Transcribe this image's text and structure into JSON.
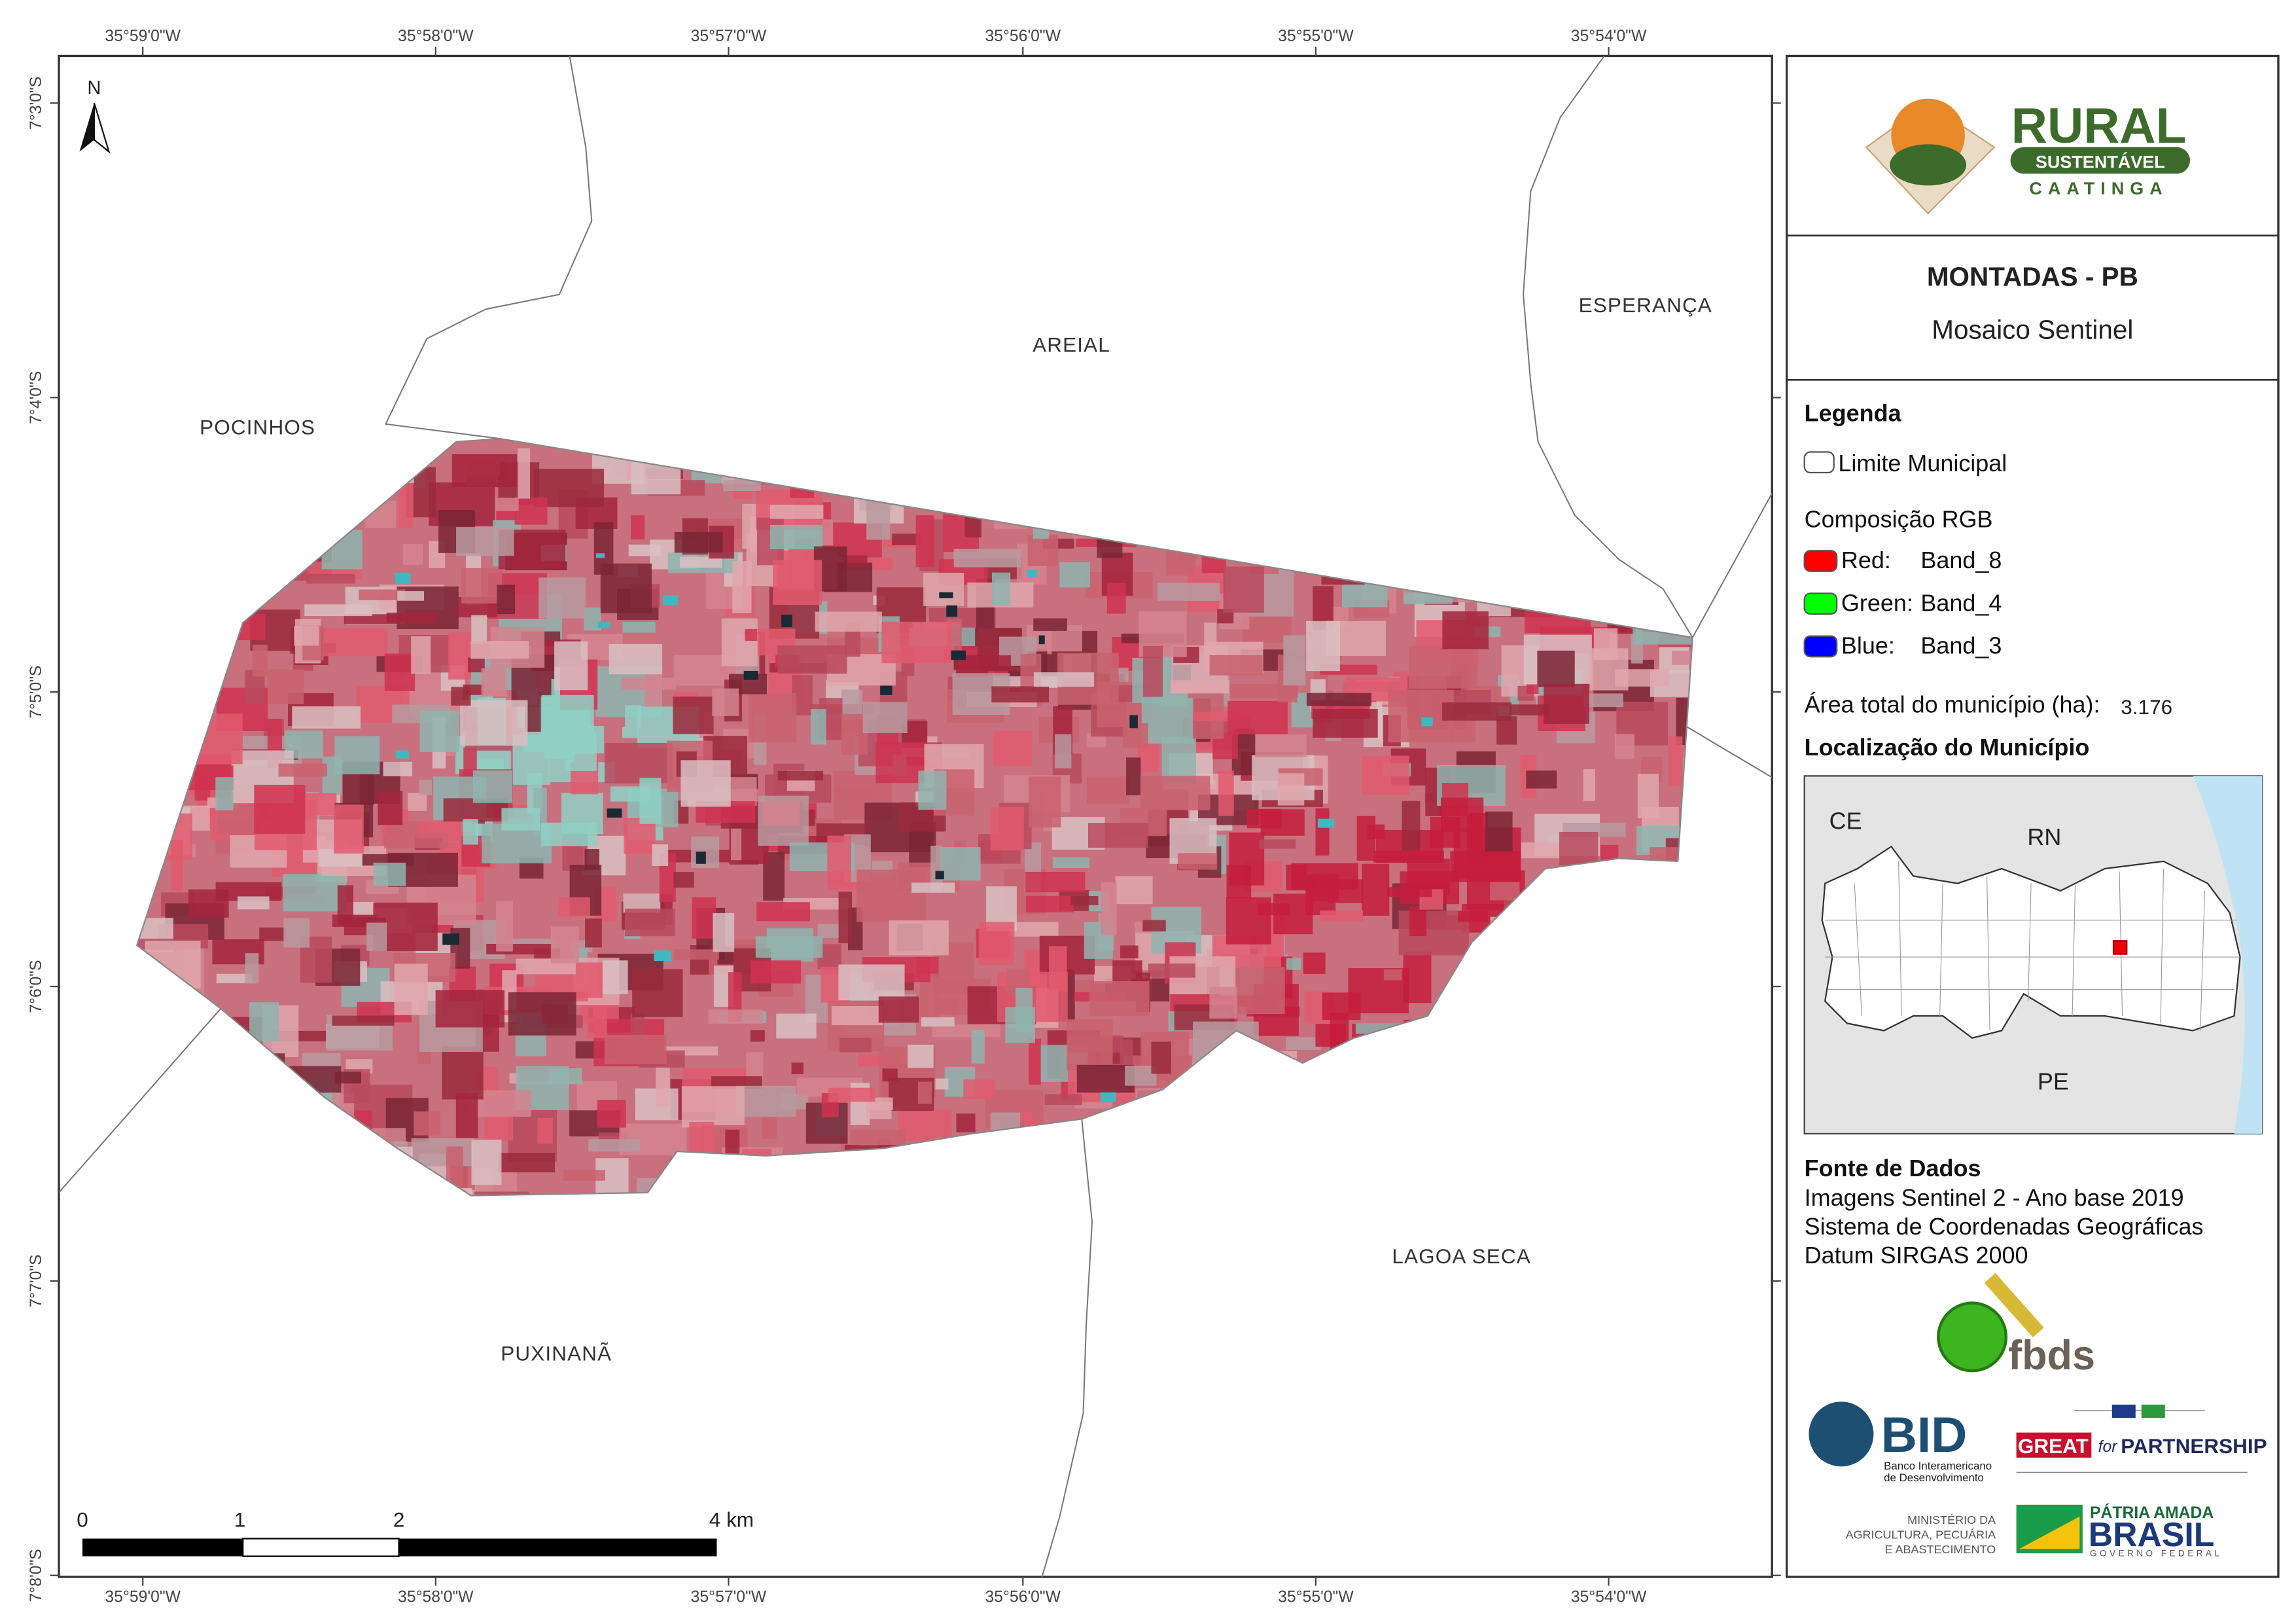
{
  "header": {
    "logo": {
      "line1": "RURAL",
      "line2": "SUSTENTÁVEL",
      "line3": "CAATINGA"
    },
    "title": "MONTADAS - PB",
    "subtitle": "Mosaico Sentinel"
  },
  "map": {
    "north": "N",
    "longitudes": [
      "35°59'0\"W",
      "35°58'0\"W",
      "35°57'0\"W",
      "35°56'0\"W",
      "35°55'0\"W",
      "35°54'0\"W"
    ],
    "latitudes": [
      "7°3'0\"S",
      "7°4'0\"S",
      "7°5'0\"S",
      "7°6'0\"S",
      "7°7'0\"S",
      "7°8'0\"S"
    ],
    "places": [
      "POCINHOS",
      "AREIAL",
      "ESPERANÇA",
      "LAGOA SECA",
      "PUXINANÃ"
    ],
    "scale": [
      "0",
      "1",
      "2",
      "4 km"
    ]
  },
  "legend": {
    "title": "Legenda",
    "boundary": "Limite Municipal",
    "rgb_title": "Composição RGB",
    "bands": [
      {
        "channel": "Red:",
        "band": "Band_8"
      },
      {
        "channel": "Green:",
        "band": "Band_4"
      },
      {
        "channel": "Blue:",
        "band": "Band_3"
      }
    ],
    "area_label": "Área total do município (ha):",
    "area_value": "3.176",
    "location_title": "Localização do Município",
    "location_labels": [
      "CE",
      "RN",
      "PE"
    ]
  },
  "sources": {
    "title": "Fonte de Dados",
    "lines": [
      "Imagens Sentinel 2 - Ano base 2019",
      "Sistema de Coordenadas Geográficas",
      "Datum SIRGAS 2000"
    ]
  },
  "logos": {
    "fbds": "fbds",
    "bid": "BID",
    "bid_sub": [
      "Banco Interamericano",
      "de Desenvolvimento"
    ],
    "great": "GREAT",
    "for": "for",
    "partnership": "PARTNERSHIP",
    "ministry": [
      "MINISTÉRIO DA",
      "AGRICULTURA, PECUÁRIA",
      "E ABASTECIMENTO"
    ],
    "brasil": [
      "PÁTRIA AMADA",
      "BRASIL",
      "GOVERNO FEDERAL"
    ]
  }
}
